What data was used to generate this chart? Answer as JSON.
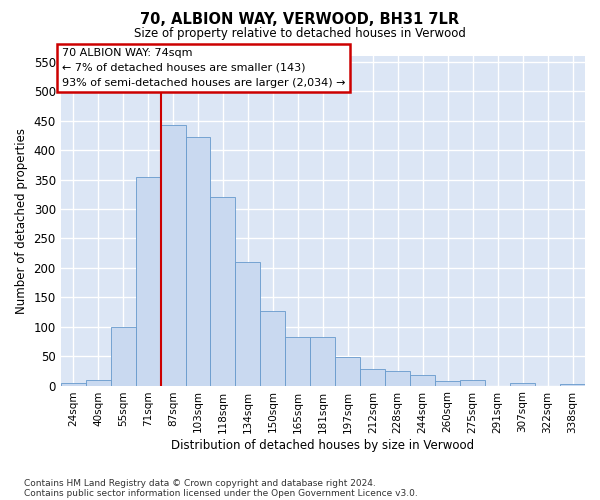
{
  "title": "70, ALBION WAY, VERWOOD, BH31 7LR",
  "subtitle": "Size of property relative to detached houses in Verwood",
  "xlabel": "Distribution of detached houses by size in Verwood",
  "ylabel": "Number of detached properties",
  "categories": [
    "24sqm",
    "40sqm",
    "55sqm",
    "71sqm",
    "87sqm",
    "103sqm",
    "118sqm",
    "134sqm",
    "150sqm",
    "165sqm",
    "181sqm",
    "197sqm",
    "212sqm",
    "228sqm",
    "244sqm",
    "260sqm",
    "275sqm",
    "291sqm",
    "307sqm",
    "322sqm",
    "338sqm"
  ],
  "values": [
    5,
    10,
    100,
    355,
    443,
    422,
    320,
    210,
    127,
    82,
    82,
    48,
    28,
    25,
    18,
    7,
    10,
    0,
    4,
    0,
    2
  ],
  "bar_color": "#c9d9f0",
  "bar_edge_color": "#6699cc",
  "background_color": "#dce6f5",
  "grid_color": "#ffffff",
  "annotation_text": "70 ALBION WAY: 74sqm\n← 7% of detached houses are smaller (143)\n93% of semi-detached houses are larger (2,034) →",
  "annotation_box_color": "#ffffff",
  "annotation_box_edge": "#cc0000",
  "ylim_max": 560,
  "yticks": [
    0,
    50,
    100,
    150,
    200,
    250,
    300,
    350,
    400,
    450,
    500,
    550
  ],
  "red_line_index": 3.5,
  "footnote1": "Contains HM Land Registry data © Crown copyright and database right 2024.",
  "footnote2": "Contains public sector information licensed under the Open Government Licence v3.0."
}
